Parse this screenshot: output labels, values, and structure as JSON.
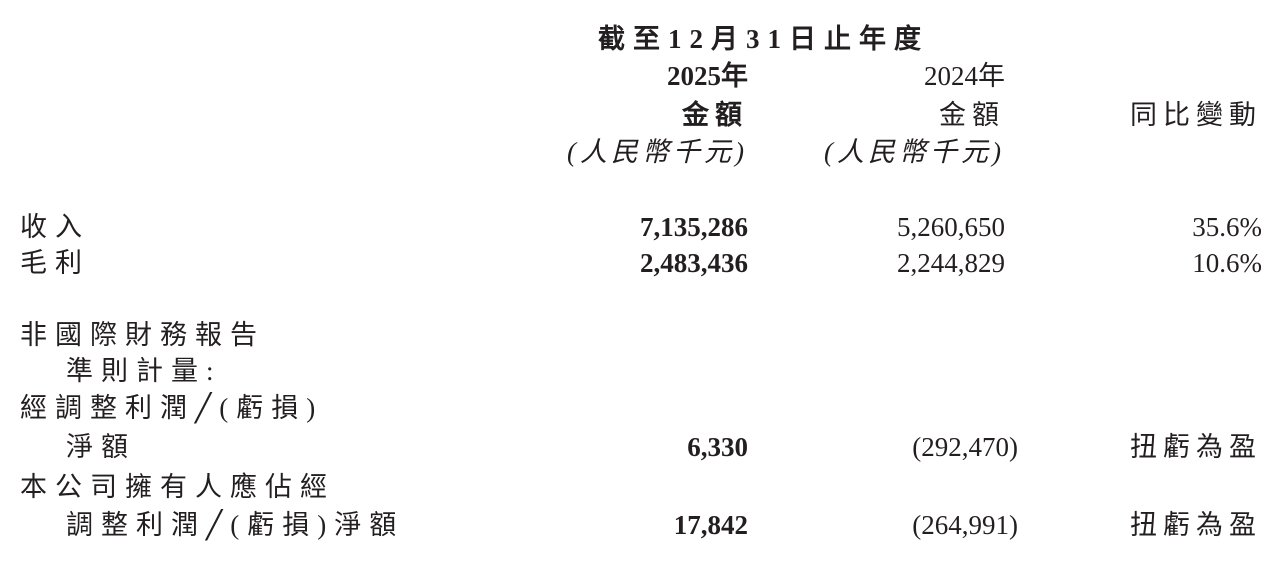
{
  "header": {
    "period": "截至12月31日止年度",
    "col_2025_year": "2025年",
    "col_2024_year": "2024年",
    "col_2025_amount": "金額",
    "col_2024_amount": "金額",
    "col_2025_unit": "(人民幣千元)",
    "col_2024_unit": "(人民幣千元)",
    "col_yoy": "同比變動"
  },
  "rows": [
    {
      "label": "收入",
      "v2025": "7,135,286",
      "v2024": "5,260,650",
      "yoy": "35.6%"
    },
    {
      "label": "毛利",
      "v2025": "2,483,436",
      "v2024": "2,244,829",
      "yoy": "10.6%"
    }
  ],
  "non_ifrs": {
    "heading_line1": "非國際財務報告",
    "heading_line2": "準則計量:",
    "row1": {
      "label_line1": "經調整利潤╱(虧損)",
      "label_line2": "淨額",
      "v2025": "6,330",
      "v2024": "(292,470)",
      "yoy": "扭虧為盈"
    },
    "row2": {
      "label_line1": "本公司擁有人應佔經",
      "label_line2": "調整利潤╱(虧損)淨額",
      "v2025": "17,842",
      "v2024": "(264,991)",
      "yoy": "扭虧為盈"
    }
  }
}
